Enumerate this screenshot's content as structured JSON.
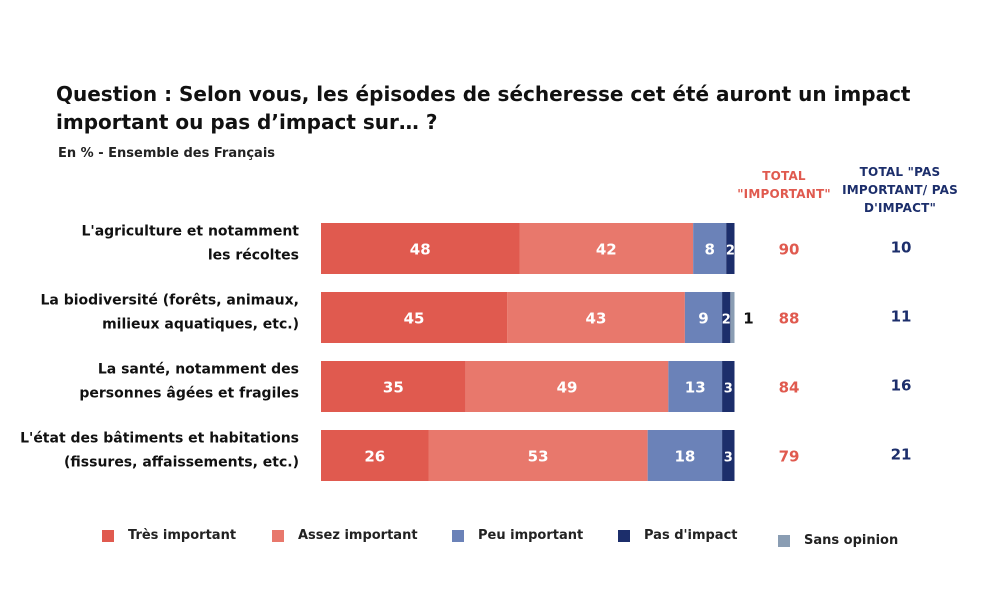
{
  "title": "Question : Selon vous, les épisodes de sécheresse cet été auront un impact important ou pas d’impact sur… ?",
  "subtitle": "En % - Ensemble des Français",
  "columns": {
    "important": "TOTAL \"IMPORTANT\"",
    "pas_important": "TOTAL \"PAS IMPORTANT/ PAS D'IMPACT\""
  },
  "colors": {
    "tres_important": "#e05a4f",
    "assez_important": "#e8786c",
    "peu_important": "#6b82b8",
    "pas_impact": "#1c2e6b",
    "sans_opinion": "#8a9db3",
    "total_important": "#e05a4f",
    "total_pas_important": "#1c2e6b"
  },
  "chart_data": {
    "type": "bar",
    "orientation": "horizontal",
    "stacked": true,
    "categories": [
      [
        "L'agriculture et notamment",
        "les récoltes"
      ],
      [
        "La biodiversité (forêts, animaux,",
        "milieux aquatiques, etc.)"
      ],
      [
        "La santé, notamment des",
        "personnes âgées et fragiles"
      ],
      [
        "L'état des bâtiments et habitations",
        "(fissures, affaissements, etc.)"
      ]
    ],
    "series": [
      {
        "name": "Très important",
        "values": [
          48,
          45,
          35,
          26
        ]
      },
      {
        "name": "Assez important",
        "values": [
          42,
          43,
          49,
          53
        ]
      },
      {
        "name": "Peu important",
        "values": [
          8,
          9,
          13,
          18
        ]
      },
      {
        "name": "Pas d'impact",
        "values": [
          2,
          2,
          3,
          3
        ]
      },
      {
        "name": "Sans opinion",
        "values": [
          0,
          1,
          0,
          0
        ]
      }
    ],
    "totals_important": [
      90,
      88,
      84,
      79
    ],
    "totals_pas_important": [
      10,
      11,
      16,
      21
    ],
    "legend_position": "bottom"
  }
}
